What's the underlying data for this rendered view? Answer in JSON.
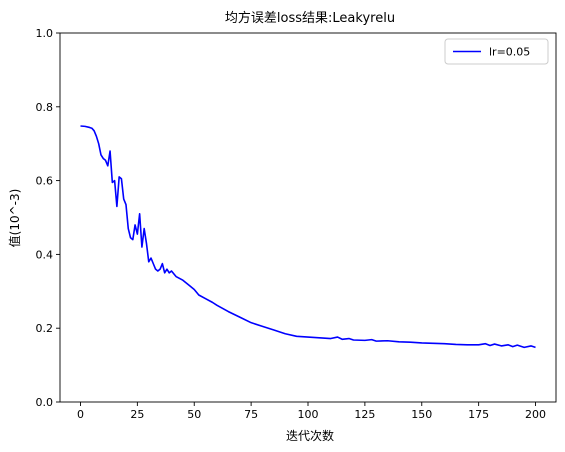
{
  "chart_data": {
    "type": "line",
    "title": "均方误差loss结果:Leakyrelu",
    "xlabel": "迭代次数",
    "ylabel": "值(10^-3)",
    "xlim": [
      -9,
      209
    ],
    "ylim": [
      0.0,
      1.0
    ],
    "xticks": [
      0,
      25,
      50,
      75,
      100,
      125,
      150,
      175,
      200
    ],
    "yticks": [
      0.0,
      0.2,
      0.4,
      0.6,
      0.8,
      1.0
    ],
    "xtick_labels": [
      "0",
      "25",
      "50",
      "75",
      "100",
      "125",
      "150",
      "175",
      "200"
    ],
    "ytick_labels": [
      "0.0",
      "0.2",
      "0.4",
      "0.6",
      "0.8",
      "1.0"
    ],
    "grid": false,
    "legend_position": "top-right",
    "series": [
      {
        "name": "lr=0.05",
        "color": "#0000ff",
        "x": [
          0,
          2,
          4,
          5,
          6,
          7,
          8,
          9,
          10,
          11,
          12,
          13,
          14,
          15,
          16,
          17,
          18,
          19,
          20,
          21,
          22,
          23,
          24,
          25,
          26,
          27,
          28,
          29,
          30,
          31,
          32,
          33,
          34,
          35,
          36,
          37,
          38,
          39,
          40,
          42,
          45,
          48,
          50,
          52,
          55,
          58,
          60,
          65,
          70,
          75,
          80,
          85,
          90,
          95,
          100,
          105,
          110,
          113,
          115,
          118,
          120,
          125,
          128,
          130,
          135,
          140,
          145,
          150,
          155,
          160,
          165,
          170,
          175,
          178,
          180,
          182,
          185,
          188,
          190,
          192,
          195,
          198,
          200
        ],
        "y": [
          0.748,
          0.747,
          0.744,
          0.742,
          0.735,
          0.72,
          0.7,
          0.67,
          0.66,
          0.655,
          0.64,
          0.68,
          0.595,
          0.6,
          0.53,
          0.61,
          0.605,
          0.55,
          0.535,
          0.47,
          0.445,
          0.44,
          0.48,
          0.455,
          0.51,
          0.42,
          0.47,
          0.43,
          0.38,
          0.39,
          0.375,
          0.36,
          0.355,
          0.36,
          0.375,
          0.35,
          0.36,
          0.35,
          0.355,
          0.34,
          0.33,
          0.315,
          0.305,
          0.29,
          0.28,
          0.27,
          0.262,
          0.245,
          0.23,
          0.215,
          0.205,
          0.195,
          0.185,
          0.178,
          0.176,
          0.174,
          0.172,
          0.176,
          0.17,
          0.172,
          0.168,
          0.167,
          0.169,
          0.165,
          0.166,
          0.163,
          0.162,
          0.16,
          0.159,
          0.158,
          0.156,
          0.155,
          0.155,
          0.158,
          0.153,
          0.157,
          0.152,
          0.155,
          0.15,
          0.154,
          0.148,
          0.152,
          0.148
        ]
      }
    ]
  }
}
